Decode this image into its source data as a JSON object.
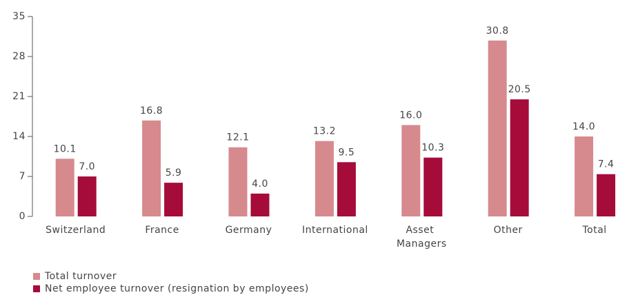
{
  "chart_data": {
    "type": "bar",
    "categories": [
      "Switzerland",
      "France",
      "Germany",
      "International",
      "Asset Managers",
      "Other",
      "Total"
    ],
    "series": [
      {
        "name": "Total turnover",
        "color": "#d68a8e",
        "values": [
          10.1,
          16.8,
          12.1,
          13.2,
          16.0,
          30.8,
          14.0
        ],
        "value_labels": [
          "10.1",
          "16.8",
          "12.1",
          "13.2",
          "16.0",
          "30.8",
          "14.0"
        ]
      },
      {
        "name": "Net employee turnover (resignation by employees)",
        "color": "#a50c3a",
        "values": [
          7.0,
          5.9,
          4.0,
          9.5,
          10.3,
          20.5,
          7.4
        ],
        "value_labels": [
          "7.0",
          "5.9",
          "4.0",
          "9.5",
          "10.3",
          "20.5",
          "7.4"
        ]
      }
    ],
    "ylim": [
      0,
      35
    ],
    "yticks": [
      0,
      7,
      14,
      21,
      28,
      35
    ],
    "grid": false
  }
}
